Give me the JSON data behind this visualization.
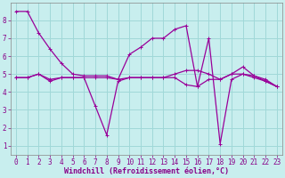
{
  "line1_x": [
    0,
    1,
    2,
    3,
    4,
    5,
    6,
    7,
    8,
    9,
    10,
    11,
    12,
    13,
    14,
    15,
    16,
    17,
    18,
    19,
    20,
    21,
    22,
    23
  ],
  "line1_y": [
    8.5,
    8.5,
    7.3,
    6.4,
    5.6,
    5.0,
    4.9,
    4.9,
    4.9,
    4.7,
    6.1,
    6.5,
    7.0,
    7.0,
    7.5,
    7.7,
    4.3,
    7.0,
    1.1,
    4.7,
    5.0,
    4.8,
    4.6,
    4.3
  ],
  "line2_x": [
    0,
    1,
    2,
    3,
    4,
    5,
    6,
    7,
    8,
    9,
    10,
    11,
    12,
    13,
    14,
    15,
    16,
    17,
    18,
    19,
    20,
    21,
    22,
    23
  ],
  "line2_y": [
    4.8,
    4.8,
    5.0,
    4.6,
    4.8,
    4.8,
    4.8,
    3.2,
    1.6,
    4.6,
    4.8,
    4.8,
    4.8,
    4.8,
    4.8,
    4.4,
    4.3,
    4.7,
    4.7,
    5.0,
    5.4,
    4.9,
    4.6,
    4.3
  ],
  "line3_x": [
    0,
    1,
    2,
    3,
    4,
    5,
    6,
    7,
    8,
    9,
    10,
    11,
    12,
    13,
    14,
    15,
    16,
    17,
    18,
    19,
    20,
    21,
    22,
    23
  ],
  "line3_y": [
    4.8,
    4.8,
    5.0,
    4.7,
    4.8,
    4.8,
    4.8,
    4.8,
    4.8,
    4.7,
    4.8,
    4.8,
    4.8,
    4.8,
    5.0,
    5.2,
    5.2,
    5.0,
    4.7,
    5.0,
    5.0,
    4.9,
    4.7,
    4.3
  ],
  "line_color": "#990099",
  "bg_color": "#c8eeee",
  "grid_color": "#a0d8d8",
  "xlabel": "Windchill (Refroidissement éolien,°C)",
  "xlim_min": -0.5,
  "xlim_max": 23.5,
  "ylim_min": 0.5,
  "ylim_max": 9.0,
  "xticks": [
    0,
    1,
    2,
    3,
    4,
    5,
    6,
    7,
    8,
    9,
    10,
    11,
    12,
    13,
    14,
    15,
    16,
    17,
    18,
    19,
    20,
    21,
    22,
    23
  ],
  "yticks": [
    1,
    2,
    3,
    4,
    5,
    6,
    7,
    8
  ],
  "tick_fontsize": 5.5,
  "xlabel_fontsize": 6.0,
  "label_color": "#880088",
  "spine_color": "#888888"
}
